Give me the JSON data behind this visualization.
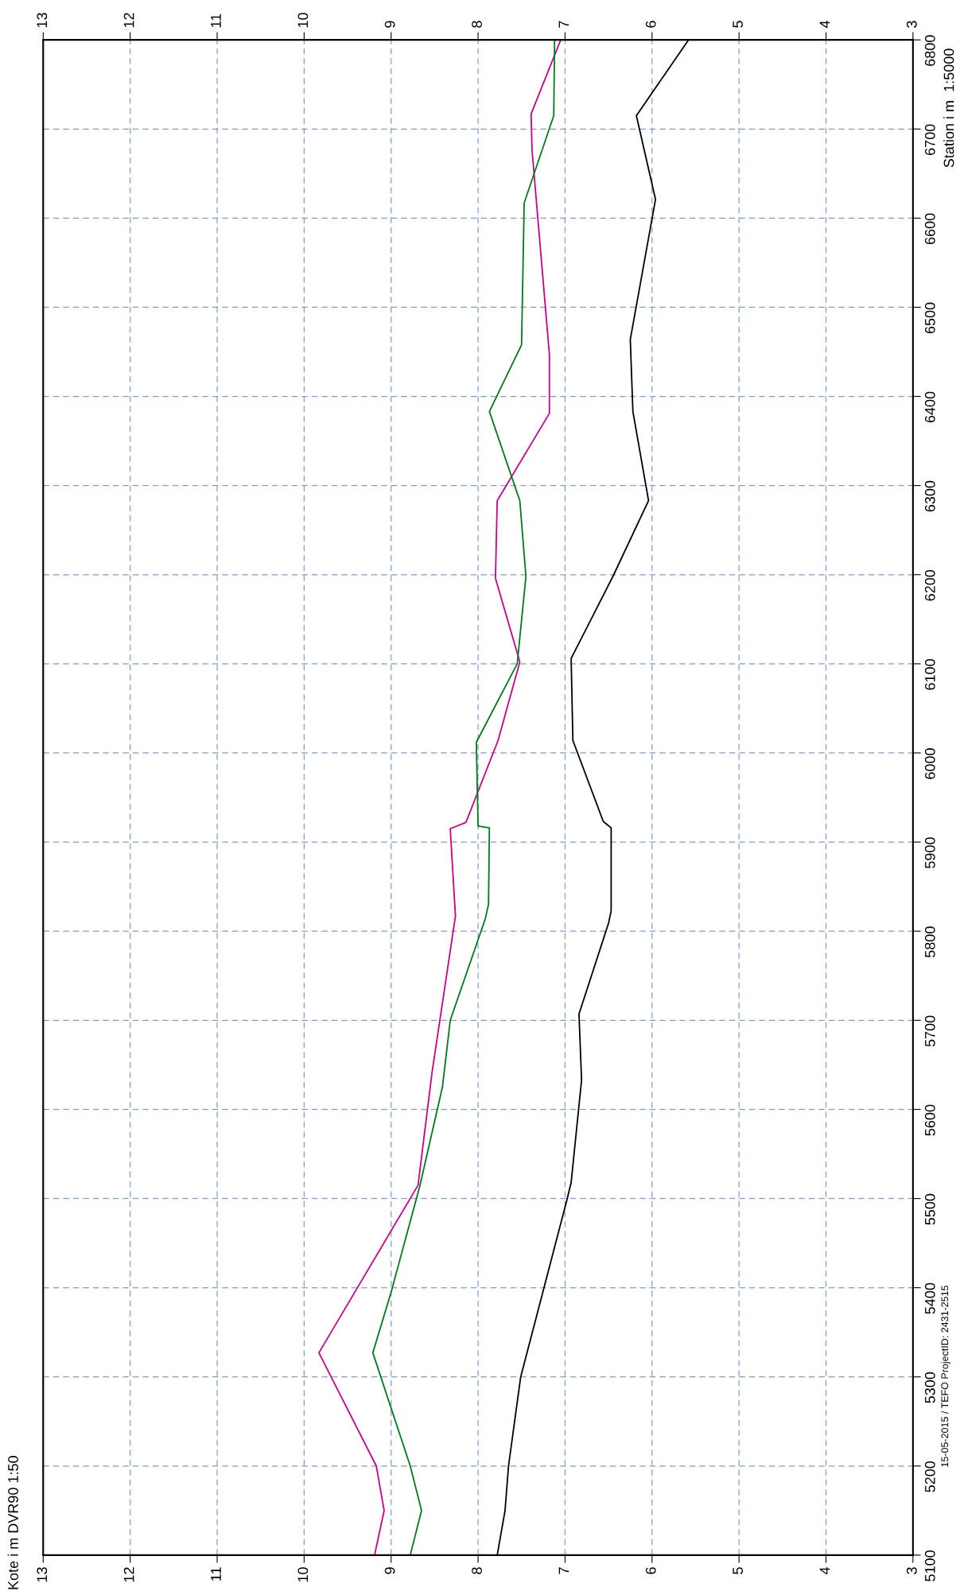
{
  "chart_data": {
    "type": "line",
    "ylabel": "Station i m  1:5000",
    "annotations": [
      "Kote i m DVR90 1:50",
      "15-05-2015 / TEFO ProjectID: 2431-2515"
    ],
    "xlim": [
      13,
      3
    ],
    "xticks": [
      13,
      12,
      11,
      10,
      9,
      8,
      7,
      6,
      5,
      4,
      3
    ],
    "x2lim": [
      13,
      3
    ],
    "x2ticks": [
      13,
      12,
      11,
      10,
      9,
      8,
      7,
      6,
      5,
      4,
      3
    ],
    "ylim": [
      5100,
      6800
    ],
    "yticks": [
      5100,
      5200,
      5300,
      5400,
      5500,
      5600,
      5700,
      5800,
      5900,
      6000,
      6100,
      6200,
      6300,
      6400,
      6500,
      6600,
      6700,
      6800
    ],
    "grid": true,
    "marker": "none",
    "line_style": "solid",
    "series": [
      {
        "color": "#cc0088",
        "x": [
          9.19,
          9.08,
          9.17,
          9.83,
          8.69,
          8.53,
          8.26,
          8.32,
          8.14,
          7.77,
          7.52,
          7.8,
          7.78,
          7.18,
          7.18,
          7.38,
          7.39,
          7.05
        ],
        "values": [
          5100,
          5150,
          5200,
          5327,
          5515,
          5641,
          5817,
          5915,
          5922,
          6014,
          6102,
          6196,
          6283,
          6381,
          6447,
          6677,
          6717,
          6800
        ]
      },
      {
        "color": "#007a1e",
        "x": [
          8.78,
          8.65,
          8.78,
          9.21,
          9.0,
          8.67,
          8.41,
          8.32,
          7.92,
          7.88,
          7.87,
          8.0,
          8.02,
          7.55,
          7.45,
          7.52,
          7.87,
          7.5,
          7.47,
          7.13,
          7.12
        ],
        "values": [
          5100,
          5150,
          5200,
          5327,
          5395,
          5514,
          5625,
          5700,
          5813,
          5830,
          5916,
          5918,
          6012,
          6100,
          6198,
          6283,
          6383,
          6458,
          6617,
          6715,
          6800
        ]
      },
      {
        "color": "#000000",
        "x": [
          7.78,
          7.69,
          7.65,
          7.51,
          6.98,
          6.93,
          6.81,
          6.84,
          6.5,
          6.47,
          6.47,
          6.56,
          6.91,
          6.93,
          6.45,
          6.04,
          6.22,
          6.25,
          5.96,
          6.18,
          5.58
        ],
        "values": [
          5100,
          5150,
          5200,
          5300,
          5498,
          5518,
          5633,
          5707,
          5809,
          5823,
          5916,
          5923,
          6014,
          6106,
          6198,
          6283,
          6383,
          6464,
          6621,
          6715,
          6800
        ]
      }
    ]
  }
}
